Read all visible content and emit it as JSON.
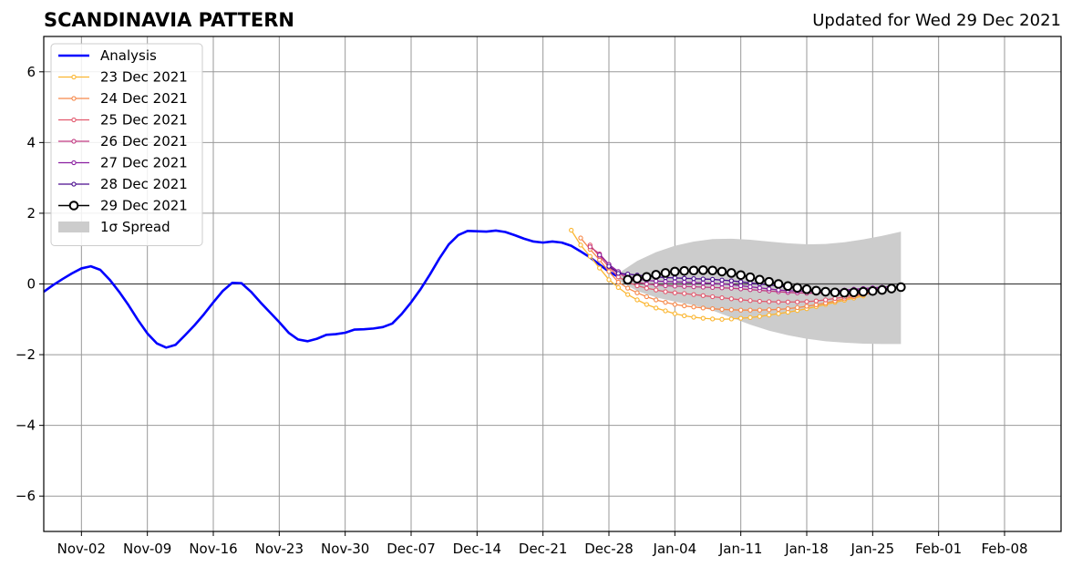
{
  "chart_data": {
    "type": "line",
    "title": "SCANDINAVIA PATTERN",
    "subtitle": "Updated for Wed 29 Dec 2021",
    "xlabel": "",
    "ylabel": "",
    "xlim": [
      "2021-10-29",
      "2022-02-14"
    ],
    "ylim": [
      -7,
      7
    ],
    "grid": true,
    "legend_position": "top-left",
    "x_ticks": [
      "2021-11-02",
      "2021-11-09",
      "2021-11-16",
      "2021-11-23",
      "2021-11-30",
      "2021-12-07",
      "2021-12-14",
      "2021-12-21",
      "2021-12-28",
      "2022-01-04",
      "2022-01-11",
      "2022-01-18",
      "2022-01-25",
      "2022-02-01",
      "2022-02-08"
    ],
    "x_tick_labels": [
      "Nov-02",
      "Nov-09",
      "Nov-16",
      "Nov-23",
      "Nov-30",
      "Dec-07",
      "Dec-14",
      "Dec-21",
      "Dec-28",
      "Jan-04",
      "Jan-11",
      "Jan-18",
      "Jan-25",
      "Feb-01",
      "Feb-08"
    ],
    "y_ticks": [
      6,
      4,
      2,
      0,
      -2,
      -4,
      -6
    ],
    "y_tick_labels": [
      "6",
      "4",
      "2",
      "0",
      "−2",
      "−4",
      "−6"
    ],
    "spread": {
      "name": "1σ Spread",
      "color": "#cccccc",
      "x": [
        "2021-12-29",
        "2021-12-31",
        "2022-01-02",
        "2022-01-04",
        "2022-01-06",
        "2022-01-08",
        "2022-01-10",
        "2022-01-12",
        "2022-01-14",
        "2022-01-16",
        "2022-01-18",
        "2022-01-20",
        "2022-01-22",
        "2022-01-24",
        "2022-01-26",
        "2022-01-28"
      ],
      "upper": [
        0.3,
        0.65,
        0.9,
        1.08,
        1.2,
        1.27,
        1.28,
        1.25,
        1.2,
        1.15,
        1.12,
        1.13,
        1.18,
        1.26,
        1.36,
        1.48
      ],
      "lower": [
        0.1,
        -0.2,
        -0.38,
        -0.5,
        -0.6,
        -0.75,
        -0.95,
        -1.15,
        -1.32,
        -1.45,
        -1.55,
        -1.62,
        -1.66,
        -1.69,
        -1.7,
        -1.7
      ]
    },
    "series": [
      {
        "name": "Analysis",
        "color": "#0000ff",
        "style": "line",
        "x": [
          "2021-10-29",
          "2021-10-30",
          "2021-10-31",
          "2021-11-01",
          "2021-11-02",
          "2021-11-03",
          "2021-11-04",
          "2021-11-05",
          "2021-11-06",
          "2021-11-07",
          "2021-11-08",
          "2021-11-09",
          "2021-11-10",
          "2021-11-11",
          "2021-11-12",
          "2021-11-13",
          "2021-11-14",
          "2021-11-15",
          "2021-11-16",
          "2021-11-17",
          "2021-11-18",
          "2021-11-19",
          "2021-11-20",
          "2021-11-21",
          "2021-11-22",
          "2021-11-23",
          "2021-11-24",
          "2021-11-25",
          "2021-11-26",
          "2021-11-27",
          "2021-11-28",
          "2021-11-29",
          "2021-11-30",
          "2021-12-01",
          "2021-12-02",
          "2021-12-03",
          "2021-12-04",
          "2021-12-05",
          "2021-12-06",
          "2021-12-07",
          "2021-12-08",
          "2021-12-09",
          "2021-12-10",
          "2021-12-11",
          "2021-12-12",
          "2021-12-13",
          "2021-12-14",
          "2021-12-15",
          "2021-12-16",
          "2021-12-17",
          "2021-12-18",
          "2021-12-19",
          "2021-12-20",
          "2021-12-21",
          "2021-12-22",
          "2021-12-23",
          "2021-12-24",
          "2021-12-25",
          "2021-12-26",
          "2021-12-27",
          "2021-12-28",
          "2021-12-29"
        ],
        "values": [
          -0.22,
          -0.03,
          0.14,
          0.3,
          0.44,
          0.5,
          0.4,
          0.12,
          -0.22,
          -0.6,
          -1.02,
          -1.4,
          -1.68,
          -1.8,
          -1.72,
          -1.45,
          -1.17,
          -0.86,
          -0.52,
          -0.2,
          0.03,
          0.02,
          -0.22,
          -0.52,
          -0.8,
          -1.08,
          -1.38,
          -1.57,
          -1.62,
          -1.55,
          -1.44,
          -1.42,
          -1.38,
          -1.29,
          -1.28,
          -1.26,
          -1.22,
          -1.12,
          -0.85,
          -0.52,
          -0.15,
          0.27,
          0.72,
          1.12,
          1.38,
          1.5,
          1.49,
          1.48,
          1.51,
          1.47,
          1.38,
          1.28,
          1.2,
          1.17,
          1.2,
          1.17,
          1.08,
          0.92,
          0.75,
          0.55,
          0.35,
          0.2
        ]
      },
      {
        "name": "23 Dec 2021",
        "color": "#fbb631",
        "style": "marker-line",
        "x": [
          "2021-12-24",
          "2021-12-25",
          "2021-12-26",
          "2021-12-27",
          "2021-12-28",
          "2021-12-29",
          "2021-12-30",
          "2021-12-31",
          "2022-01-01",
          "2022-01-02",
          "2022-01-03",
          "2022-01-04",
          "2022-01-05",
          "2022-01-06",
          "2022-01-07",
          "2022-01-08",
          "2022-01-09",
          "2022-01-10",
          "2022-01-11",
          "2022-01-12",
          "2022-01-13",
          "2022-01-14",
          "2022-01-15",
          "2022-01-16",
          "2022-01-17",
          "2022-01-18",
          "2022-01-19",
          "2022-01-20",
          "2022-01-21",
          "2022-01-22",
          "2022-01-23",
          "2022-01-24"
        ],
        "values": [
          1.52,
          1.1,
          0.78,
          0.45,
          0.12,
          -0.1,
          -0.3,
          -0.45,
          -0.58,
          -0.68,
          -0.76,
          -0.84,
          -0.9,
          -0.94,
          -0.97,
          -0.99,
          -1.0,
          -0.99,
          -0.97,
          -0.95,
          -0.92,
          -0.88,
          -0.84,
          -0.8,
          -0.75,
          -0.7,
          -0.64,
          -0.58,
          -0.52,
          -0.46,
          -0.4,
          -0.34
        ]
      },
      {
        "name": "24 Dec 2021",
        "color": "#f6894b",
        "style": "marker-line",
        "x": [
          "2021-12-25",
          "2021-12-26",
          "2021-12-27",
          "2021-12-28",
          "2021-12-29",
          "2021-12-30",
          "2021-12-31",
          "2022-01-01",
          "2022-01-02",
          "2022-01-03",
          "2022-01-04",
          "2022-01-05",
          "2022-01-06",
          "2022-01-07",
          "2022-01-08",
          "2022-01-09",
          "2022-01-10",
          "2022-01-11",
          "2022-01-12",
          "2022-01-13",
          "2022-01-14",
          "2022-01-15",
          "2022-01-16",
          "2022-01-17",
          "2022-01-18",
          "2022-01-19",
          "2022-01-20",
          "2022-01-21",
          "2022-01-22",
          "2022-01-23",
          "2022-01-24",
          "2022-01-25"
        ],
        "values": [
          1.3,
          0.98,
          0.68,
          0.35,
          0.05,
          -0.12,
          -0.25,
          -0.36,
          -0.45,
          -0.52,
          -0.58,
          -0.62,
          -0.65,
          -0.68,
          -0.7,
          -0.72,
          -0.73,
          -0.74,
          -0.74,
          -0.74,
          -0.73,
          -0.72,
          -0.7,
          -0.67,
          -0.63,
          -0.59,
          -0.54,
          -0.48,
          -0.42,
          -0.36,
          -0.3,
          -0.25
        ]
      },
      {
        "name": "25 Dec 2021",
        "color": "#e2596e",
        "style": "marker-line",
        "x": [
          "2021-12-26",
          "2021-12-27",
          "2021-12-28",
          "2021-12-29",
          "2021-12-30",
          "2021-12-31",
          "2022-01-01",
          "2022-01-02",
          "2022-01-03",
          "2022-01-04",
          "2022-01-05",
          "2022-01-06",
          "2022-01-07",
          "2022-01-08",
          "2022-01-09",
          "2022-01-10",
          "2022-01-11",
          "2022-01-12",
          "2022-01-13",
          "2022-01-14",
          "2022-01-15",
          "2022-01-16",
          "2022-01-17",
          "2022-01-18",
          "2022-01-19",
          "2022-01-20",
          "2022-01-21",
          "2022-01-22",
          "2022-01-23",
          "2022-01-24",
          "2022-01-25",
          "2022-01-26"
        ],
        "values": [
          1.1,
          0.78,
          0.48,
          0.2,
          0.05,
          -0.05,
          -0.12,
          -0.17,
          -0.22,
          -0.25,
          -0.27,
          -0.3,
          -0.33,
          -0.36,
          -0.39,
          -0.42,
          -0.45,
          -0.47,
          -0.49,
          -0.5,
          -0.51,
          -0.51,
          -0.51,
          -0.5,
          -0.48,
          -0.45,
          -0.41,
          -0.37,
          -0.32,
          -0.27,
          -0.22,
          -0.17
        ]
      },
      {
        "name": "26 Dec 2021",
        "color": "#c13b82",
        "style": "marker-line",
        "x": [
          "2021-12-26",
          "2021-12-27",
          "2021-12-28",
          "2021-12-29",
          "2021-12-30",
          "2021-12-31",
          "2022-01-01",
          "2022-01-02",
          "2022-01-03",
          "2022-01-04",
          "2022-01-05",
          "2022-01-06",
          "2022-01-07",
          "2022-01-08",
          "2022-01-09",
          "2022-01-10",
          "2022-01-11",
          "2022-01-12",
          "2022-01-13",
          "2022-01-14",
          "2022-01-15",
          "2022-01-16",
          "2022-01-17",
          "2022-01-18",
          "2022-01-19",
          "2022-01-20",
          "2022-01-21",
          "2022-01-22",
          "2022-01-23",
          "2022-01-24",
          "2022-01-25",
          "2022-01-26"
        ],
        "values": [
          1.05,
          0.85,
          0.55,
          0.32,
          0.15,
          0.05,
          0.0,
          -0.03,
          -0.05,
          -0.06,
          -0.07,
          -0.08,
          -0.09,
          -0.1,
          -0.11,
          -0.12,
          -0.14,
          -0.16,
          -0.18,
          -0.2,
          -0.22,
          -0.24,
          -0.25,
          -0.26,
          -0.26,
          -0.25,
          -0.24,
          -0.22,
          -0.19,
          -0.16,
          -0.13,
          -0.1
        ]
      },
      {
        "name": "27 Dec 2021",
        "color": "#8a1fa0",
        "style": "marker-line",
        "x": [
          "2021-12-27",
          "2021-12-28",
          "2021-12-29",
          "2021-12-30",
          "2021-12-31",
          "2022-01-01",
          "2022-01-02",
          "2022-01-03",
          "2022-01-04",
          "2022-01-05",
          "2022-01-06",
          "2022-01-07",
          "2022-01-08",
          "2022-01-09",
          "2022-01-10",
          "2022-01-11",
          "2022-01-12",
          "2022-01-13",
          "2022-01-14",
          "2022-01-15",
          "2022-01-16",
          "2022-01-17",
          "2022-01-18",
          "2022-01-19",
          "2022-01-20",
          "2022-01-21",
          "2022-01-22",
          "2022-01-23",
          "2022-01-24",
          "2022-01-25",
          "2022-01-26",
          "2022-01-27"
        ],
        "values": [
          0.82,
          0.55,
          0.35,
          0.22,
          0.14,
          0.1,
          0.08,
          0.07,
          0.06,
          0.05,
          0.04,
          0.03,
          0.02,
          0.0,
          -0.02,
          -0.05,
          -0.08,
          -0.11,
          -0.14,
          -0.17,
          -0.19,
          -0.2,
          -0.21,
          -0.21,
          -0.2,
          -0.19,
          -0.17,
          -0.15,
          -0.13,
          -0.11,
          -0.09,
          -0.07
        ]
      },
      {
        "name": "28 Dec 2021",
        "color": "#4a0c8e",
        "style": "marker-line",
        "x": [
          "2021-12-28",
          "2021-12-29",
          "2021-12-30",
          "2021-12-31",
          "2022-01-01",
          "2022-01-02",
          "2022-01-03",
          "2022-01-04",
          "2022-01-05",
          "2022-01-06",
          "2022-01-07",
          "2022-01-08",
          "2022-01-09",
          "2022-01-10",
          "2022-01-11",
          "2022-01-12",
          "2022-01-13",
          "2022-01-14",
          "2022-01-15",
          "2022-01-16",
          "2022-01-17",
          "2022-01-18",
          "2022-01-19",
          "2022-01-20",
          "2022-01-21",
          "2022-01-22",
          "2022-01-23",
          "2022-01-24",
          "2022-01-25",
          "2022-01-26",
          "2022-01-27",
          "2022-01-28"
        ],
        "values": [
          0.5,
          0.3,
          0.28,
          0.25,
          0.22,
          0.2,
          0.18,
          0.17,
          0.16,
          0.15,
          0.14,
          0.13,
          0.11,
          0.09,
          0.06,
          0.03,
          0.0,
          -0.03,
          -0.06,
          -0.09,
          -0.12,
          -0.15,
          -0.17,
          -0.19,
          -0.2,
          -0.2,
          -0.19,
          -0.18,
          -0.16,
          -0.14,
          -0.12,
          -0.1
        ]
      },
      {
        "name": "29 Dec 2021",
        "color": "#000000",
        "style": "open-circles",
        "x": [
          "2021-12-30",
          "2021-12-31",
          "2022-01-01",
          "2022-01-02",
          "2022-01-03",
          "2022-01-04",
          "2022-01-05",
          "2022-01-06",
          "2022-01-07",
          "2022-01-08",
          "2022-01-09",
          "2022-01-10",
          "2022-01-11",
          "2022-01-12",
          "2022-01-13",
          "2022-01-14",
          "2022-01-15",
          "2022-01-16",
          "2022-01-17",
          "2022-01-18",
          "2022-01-19",
          "2022-01-20",
          "2022-01-21",
          "2022-01-22",
          "2022-01-23",
          "2022-01-24",
          "2022-01-25",
          "2022-01-26",
          "2022-01-27",
          "2022-01-28"
        ],
        "values": [
          0.12,
          0.15,
          0.2,
          0.26,
          0.31,
          0.35,
          0.37,
          0.38,
          0.39,
          0.38,
          0.35,
          0.31,
          0.25,
          0.19,
          0.12,
          0.06,
          0.0,
          -0.06,
          -0.11,
          -0.15,
          -0.19,
          -0.22,
          -0.24,
          -0.25,
          -0.24,
          -0.22,
          -0.2,
          -0.17,
          -0.13,
          -0.09
        ]
      }
    ]
  }
}
